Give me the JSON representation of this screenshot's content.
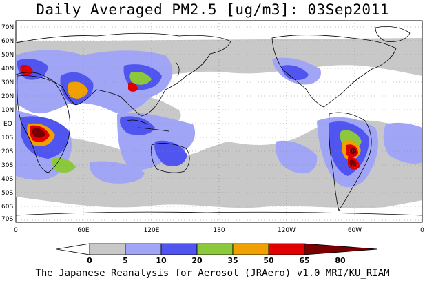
{
  "title": "Daily Averaged PM2.5 [ug/m3]: 03Sep2011",
  "footer": "The Japanese Reanalysis for Aerosol (JRAero) v1.0 MRI/KU_RIAM",
  "lat_labels": [
    "70N",
    "60N",
    "50N",
    "40N",
    "30N",
    "20N",
    "10N",
    "EQ",
    "10S",
    "20S",
    "30S",
    "40S",
    "50S",
    "60S",
    "70S"
  ],
  "lon_labels": [
    "0",
    "60E",
    "120E",
    "180",
    "120W",
    "60W",
    "0"
  ],
  "colorbar": {
    "levels": [
      "0",
      "5",
      "10",
      "20",
      "35",
      "50",
      "65",
      "80"
    ],
    "colors": [
      "#ffffff",
      "#c8c8c8",
      "#a0a5f5",
      "#5055f0",
      "#8cc83c",
      "#f0a000",
      "#e00000",
      "#780000"
    ]
  },
  "ocean_color": "#ffffff",
  "coast_color": "#000000"
}
